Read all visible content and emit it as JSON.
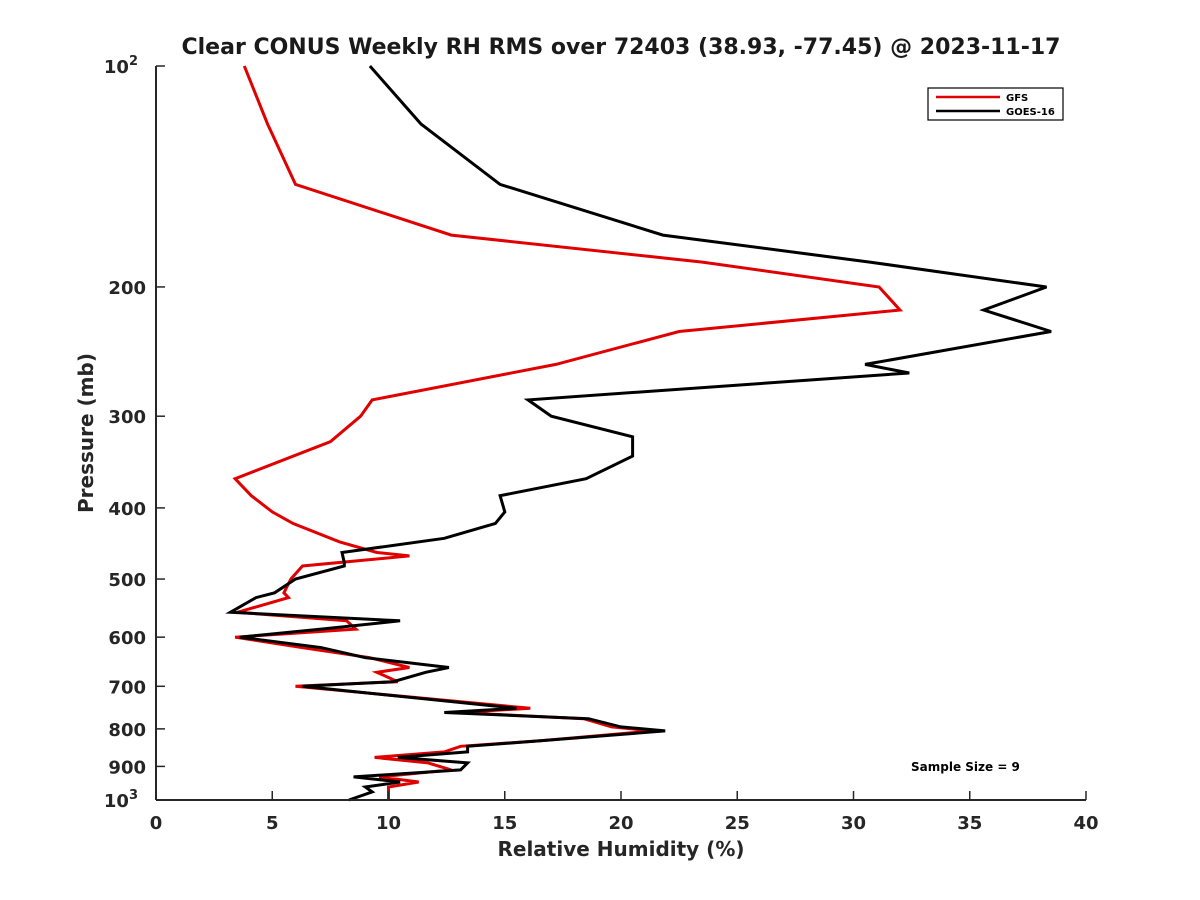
{
  "chart_data": {
    "type": "line",
    "title": "Clear CONUS Weekly RH RMS over 72403 (38.93, -77.45) @ 2023-11-17",
    "xlabel": "Relative Humidity (%)",
    "ylabel": "Pressure (mb)",
    "xlim": [
      0,
      40
    ],
    "ylim": [
      100,
      1000
    ],
    "yscale": "log",
    "y_reversed": true,
    "xticks": [
      0,
      5,
      10,
      15,
      20,
      25,
      30,
      35,
      40
    ],
    "yticks": [
      {
        "value": 100,
        "base": "10",
        "exp": "2"
      },
      {
        "value": 200,
        "label": "200"
      },
      {
        "value": 300,
        "label": "300"
      },
      {
        "value": 400,
        "label": "400"
      },
      {
        "value": 500,
        "label": "500"
      },
      {
        "value": 600,
        "label": "600"
      },
      {
        "value": 700,
        "label": "700"
      },
      {
        "value": 800,
        "label": "800"
      },
      {
        "value": 900,
        "label": "900"
      },
      {
        "value": 1000,
        "base": "10",
        "exp": "3"
      }
    ],
    "legend_position": "top-right",
    "annotation": "Sample Size = 9",
    "series": [
      {
        "name": "GFS",
        "color": "#e00000",
        "points": [
          [
            3.8,
            100
          ],
          [
            4.8,
            120
          ],
          [
            6.0,
            145
          ],
          [
            12.7,
            170
          ],
          [
            23.5,
            185
          ],
          [
            31.1,
            200
          ],
          [
            32.0,
            215
          ],
          [
            22.5,
            230
          ],
          [
            17.2,
            255
          ],
          [
            9.3,
            285
          ],
          [
            8.8,
            300
          ],
          [
            7.5,
            325
          ],
          [
            3.4,
            365
          ],
          [
            4.1,
            385
          ],
          [
            5.0,
            405
          ],
          [
            5.9,
            420
          ],
          [
            7.9,
            445
          ],
          [
            9.5,
            460
          ],
          [
            10.9,
            465
          ],
          [
            6.3,
            480
          ],
          [
            5.8,
            500
          ],
          [
            5.5,
            522
          ],
          [
            5.7,
            530
          ],
          [
            3.5,
            555
          ],
          [
            8.2,
            570
          ],
          [
            8.6,
            585
          ],
          [
            3.4,
            600
          ],
          [
            6.3,
            620
          ],
          [
            9.2,
            640
          ],
          [
            10.9,
            660
          ],
          [
            9.5,
            670
          ],
          [
            10.4,
            690
          ],
          [
            6.0,
            700
          ],
          [
            16.1,
            750
          ],
          [
            13.0,
            760
          ],
          [
            18.4,
            775
          ],
          [
            19.6,
            795
          ],
          [
            21.4,
            805
          ],
          [
            16.6,
            830
          ],
          [
            13.1,
            845
          ],
          [
            12.4,
            860
          ],
          [
            9.4,
            875
          ],
          [
            11.7,
            890
          ],
          [
            12.7,
            910
          ],
          [
            9.6,
            930
          ],
          [
            11.3,
            945
          ],
          [
            10.0,
            960
          ],
          [
            10.0,
            1000
          ]
        ]
      },
      {
        "name": "GOES-16",
        "color": "#000000",
        "points": [
          [
            9.2,
            100
          ],
          [
            11.4,
            120
          ],
          [
            14.8,
            145
          ],
          [
            21.8,
            170
          ],
          [
            30.7,
            185
          ],
          [
            38.3,
            200
          ],
          [
            35.6,
            215
          ],
          [
            38.5,
            230
          ],
          [
            30.5,
            255
          ],
          [
            32.4,
            262
          ],
          [
            16.0,
            285
          ],
          [
            17.0,
            300
          ],
          [
            20.5,
            320
          ],
          [
            20.5,
            340
          ],
          [
            18.5,
            365
          ],
          [
            14.8,
            385
          ],
          [
            15.0,
            405
          ],
          [
            14.6,
            420
          ],
          [
            12.4,
            440
          ],
          [
            8.0,
            460
          ],
          [
            8.1,
            475
          ],
          [
            8.1,
            480
          ],
          [
            6.0,
            500
          ],
          [
            5.1,
            522
          ],
          [
            4.3,
            530
          ],
          [
            3.2,
            555
          ],
          [
            10.5,
            570
          ],
          [
            7.1,
            585
          ],
          [
            3.6,
            600
          ],
          [
            7.1,
            620
          ],
          [
            9.0,
            640
          ],
          [
            12.6,
            660
          ],
          [
            11.6,
            670
          ],
          [
            10.2,
            690
          ],
          [
            6.3,
            700
          ],
          [
            15.5,
            750
          ],
          [
            12.4,
            760
          ],
          [
            18.6,
            775
          ],
          [
            20.0,
            795
          ],
          [
            21.9,
            805
          ],
          [
            16.6,
            830
          ],
          [
            13.4,
            845
          ],
          [
            13.4,
            860
          ],
          [
            10.4,
            875
          ],
          [
            13.4,
            890
          ],
          [
            13.1,
            910
          ],
          [
            8.5,
            930
          ],
          [
            10.5,
            945
          ],
          [
            9.0,
            960
          ],
          [
            9.3,
            975
          ],
          [
            8.3,
            1000
          ]
        ]
      }
    ]
  }
}
